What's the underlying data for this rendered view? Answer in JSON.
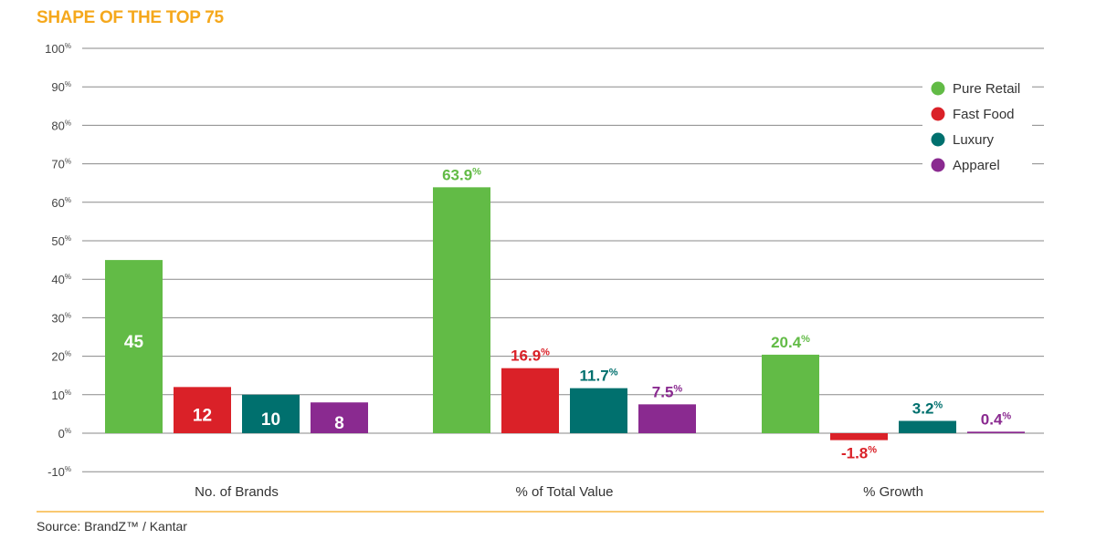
{
  "title": "SHAPE OF THE TOP 75",
  "source": "Source: BrandZ™ / Kantar",
  "chart_data": {
    "type": "bar",
    "title": "SHAPE OF THE TOP 75",
    "categories": [
      "No. of Brands",
      "% of Total Value",
      "% Growth"
    ],
    "series": [
      {
        "name": "Pure Retail",
        "color": "#62BB46",
        "values": [
          45,
          63.9,
          20.4
        ],
        "labels": [
          "45",
          "63.9",
          "20.4"
        ]
      },
      {
        "name": "Fast Food",
        "color": "#DA2128",
        "values": [
          12,
          16.9,
          -1.8
        ],
        "labels": [
          "12",
          "16.9",
          "-1.8"
        ]
      },
      {
        "name": "Luxury",
        "color": "#00706E",
        "values": [
          10,
          11.7,
          3.2
        ],
        "labels": [
          "10",
          "11.7",
          "3.2"
        ]
      },
      {
        "name": "Apparel",
        "color": "#8A2A90",
        "values": [
          8,
          7.5,
          0.4
        ],
        "labels": [
          "8",
          "7.5",
          "0.4"
        ]
      }
    ],
    "ylim": [
      -10,
      100
    ],
    "yticks": [
      "-10",
      "0",
      "10",
      "20",
      "30",
      "40",
      "50",
      "60",
      "70",
      "80",
      "90",
      "100"
    ],
    "tick_suffix": "%",
    "grid": true,
    "legend": "top-right",
    "accent_color": "#F5A81C"
  }
}
